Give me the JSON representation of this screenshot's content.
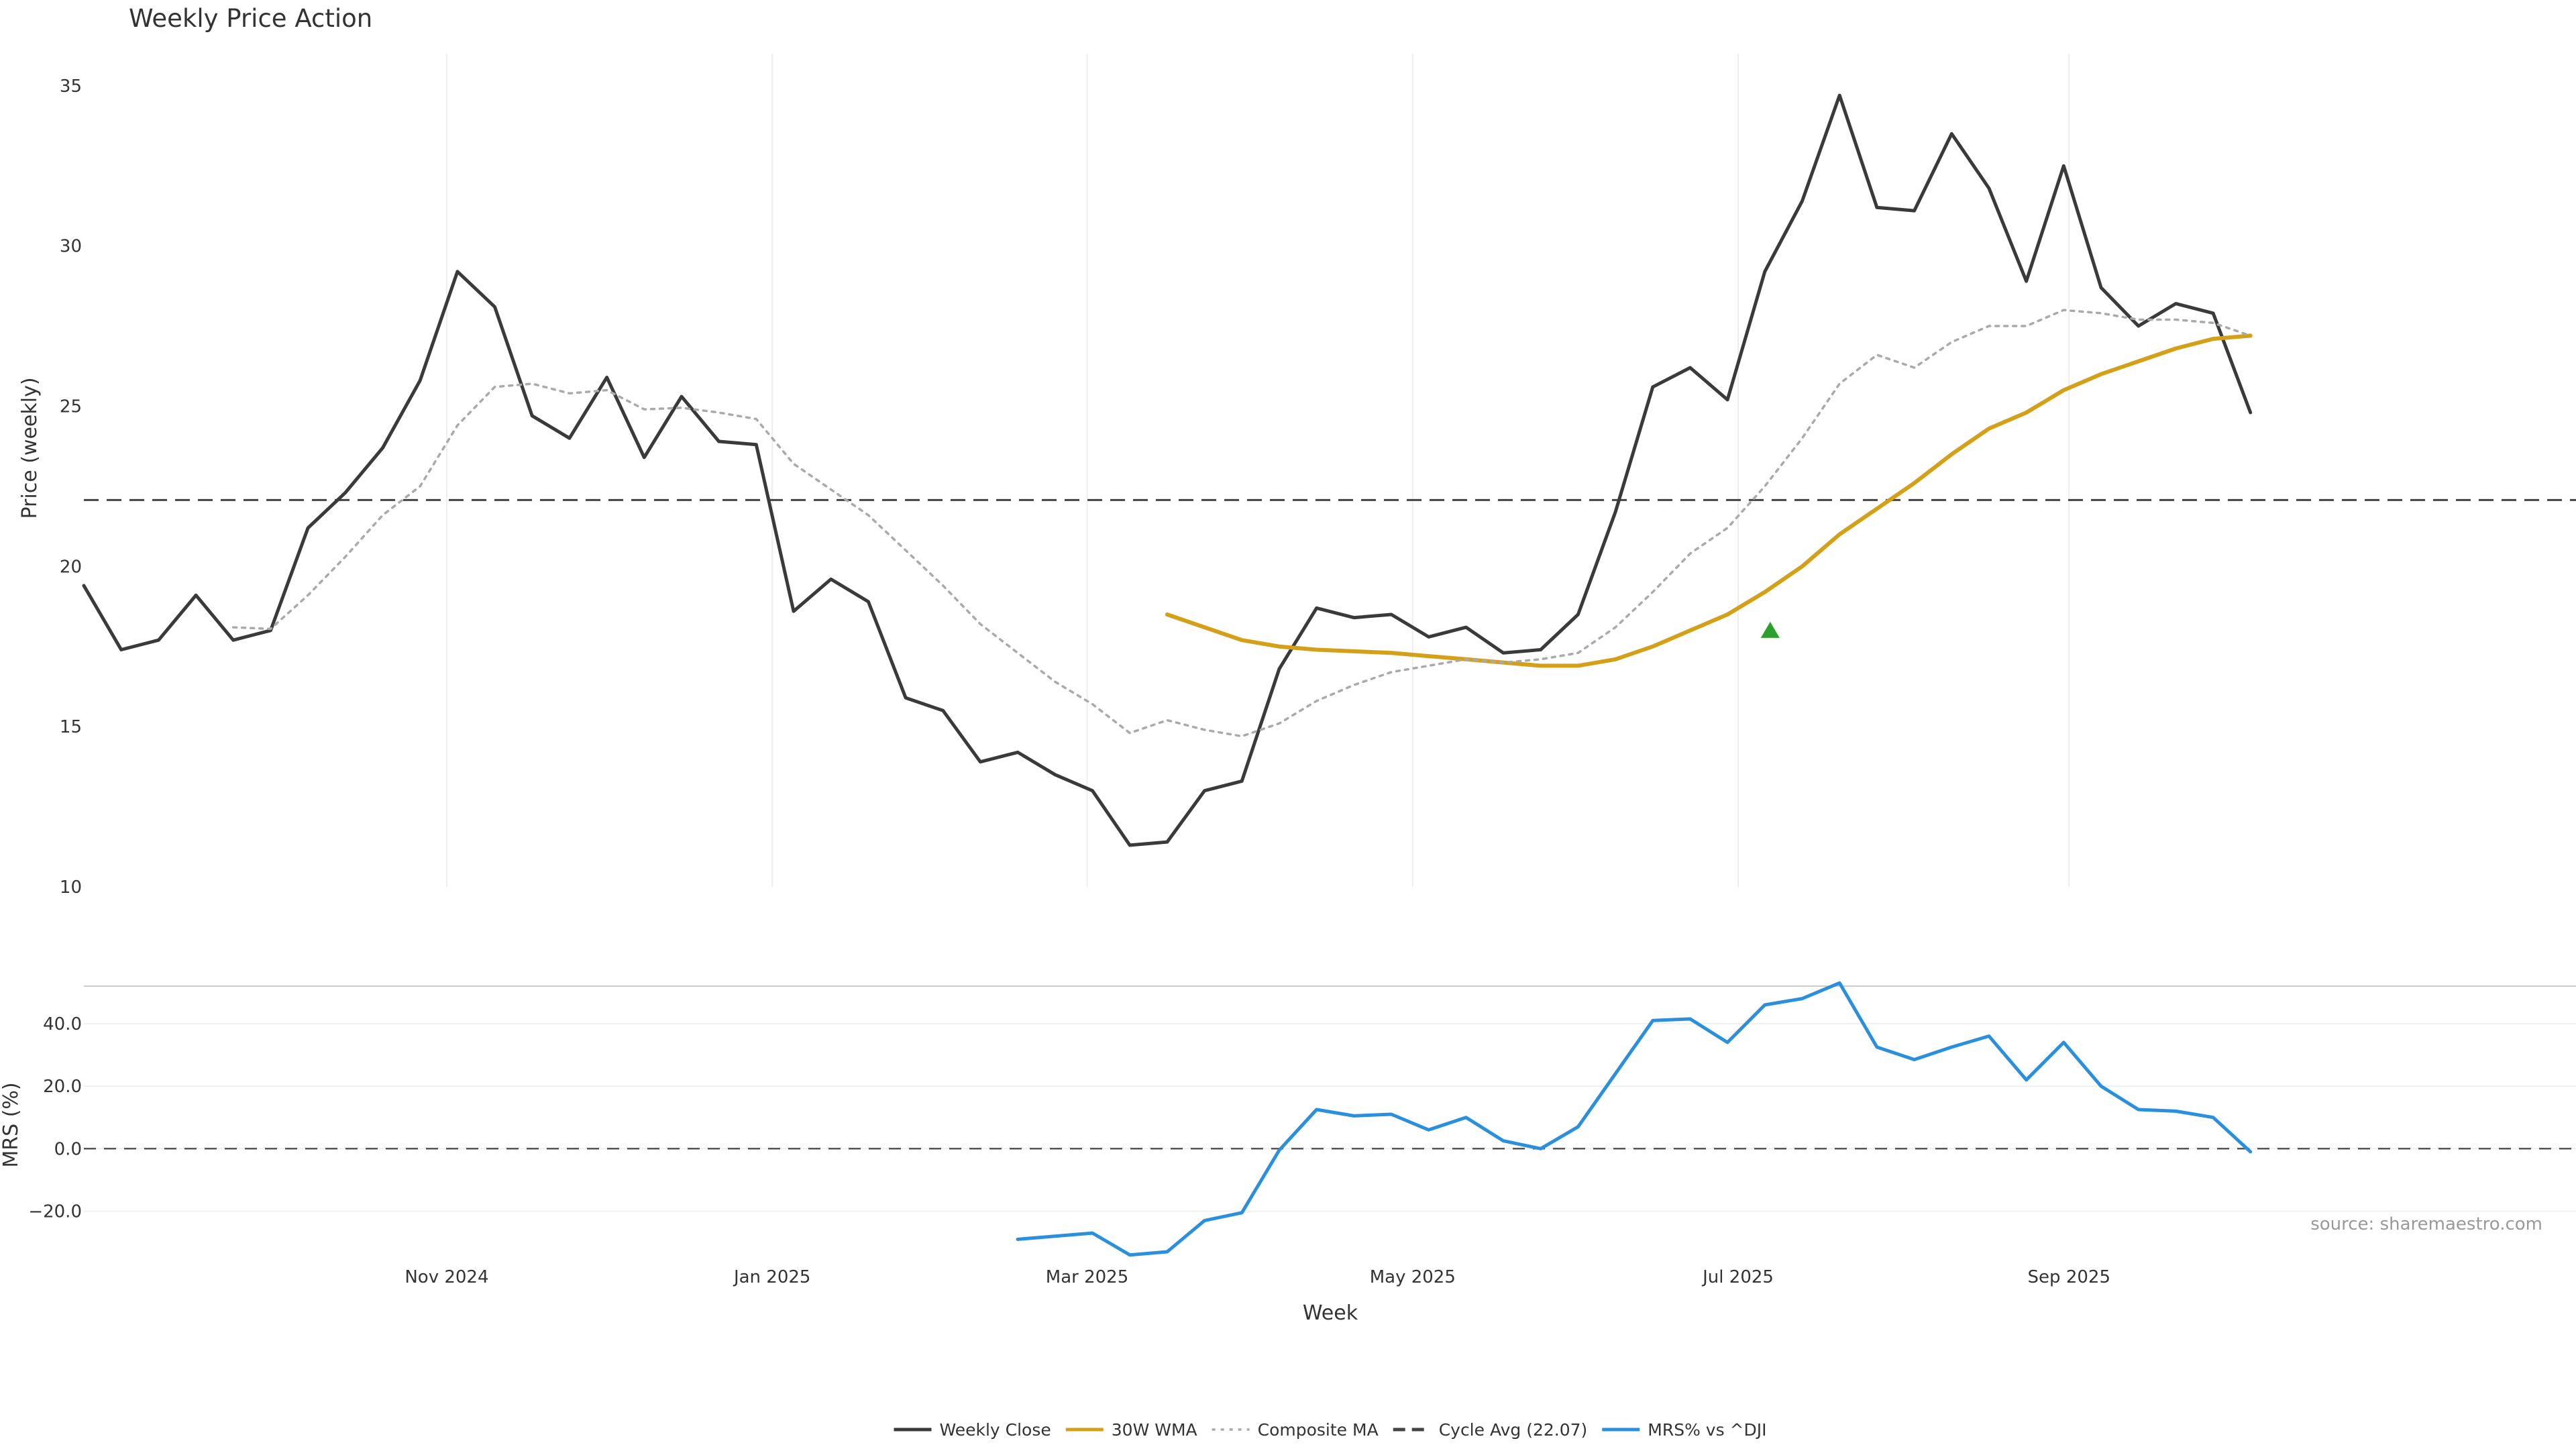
{
  "chart_data": {
    "type": "line",
    "title": "Weekly Price Action",
    "xlabel": "Week",
    "source": "source: sharemaestro.com",
    "x_ticks": [
      {
        "date": "2024-11-01",
        "label": "Nov 2024"
      },
      {
        "date": "2025-01-01",
        "label": "Jan 2025"
      },
      {
        "date": "2025-03-01",
        "label": "Mar 2025"
      },
      {
        "date": "2025-05-01",
        "label": "May 2025"
      },
      {
        "date": "2025-07-01",
        "label": "Jul 2025"
      },
      {
        "date": "2025-09-01",
        "label": "Sep 2025"
      }
    ],
    "x_range": [
      "2024-08-25",
      "2025-12-05"
    ],
    "dates": [
      "2024-08-25",
      "2024-09-01",
      "2024-09-08",
      "2024-09-15",
      "2024-09-22",
      "2024-09-29",
      "2024-10-06",
      "2024-10-13",
      "2024-10-20",
      "2024-10-27",
      "2024-11-03",
      "2024-11-10",
      "2024-11-17",
      "2024-11-24",
      "2024-12-01",
      "2024-12-08",
      "2024-12-15",
      "2024-12-22",
      "2024-12-29",
      "2025-01-05",
      "2025-01-12",
      "2025-01-19",
      "2025-01-26",
      "2025-02-02",
      "2025-02-09",
      "2025-02-16",
      "2025-02-23",
      "2025-03-02",
      "2025-03-09",
      "2025-03-16",
      "2025-03-23",
      "2025-03-30",
      "2025-04-06",
      "2025-04-13",
      "2025-04-20",
      "2025-04-27",
      "2025-05-04",
      "2025-05-11",
      "2025-05-18",
      "2025-05-25",
      "2025-06-01",
      "2025-06-08",
      "2025-06-15",
      "2025-06-22",
      "2025-06-29",
      "2025-07-06",
      "2025-07-13",
      "2025-07-20",
      "2025-07-27",
      "2025-08-03",
      "2025-08-10",
      "2025-08-17",
      "2025-08-24",
      "2025-08-31",
      "2025-09-07",
      "2025-09-14",
      "2025-09-21",
      "2025-09-28",
      "2025-10-05",
      "2025-10-12",
      "2025-10-19",
      "2025-10-26"
    ],
    "price_panel": {
      "ylabel": "Price (weekly)",
      "ylim": [
        10,
        36
      ],
      "yticks": [
        10,
        15,
        20,
        25,
        30,
        35
      ],
      "cycle_avg": 22.07,
      "series": [
        {
          "name": "Weekly Close",
          "color": "#3a3a3a",
          "style": "solid",
          "values": [
            19.4,
            17.4,
            17.7,
            19.1,
            17.7,
            18.0,
            21.2,
            22.3,
            23.7,
            25.8,
            29.2,
            28.1,
            24.7,
            24.0,
            25.9,
            23.4,
            25.3,
            23.9,
            23.8,
            18.6,
            19.6,
            18.9,
            15.9,
            15.5,
            13.9,
            14.2,
            13.5,
            13.0,
            11.3,
            11.4,
            13.0,
            13.3,
            16.8,
            18.7,
            18.4,
            18.5,
            17.8,
            18.1,
            17.3,
            17.4,
            18.5,
            21.7,
            25.6,
            26.2,
            25.2,
            29.2,
            31.4,
            34.7,
            31.2,
            31.1,
            33.5,
            31.8,
            28.9,
            32.5,
            28.7,
            27.5,
            28.2,
            27.9,
            24.8,
            null,
            null,
            null
          ]
        },
        {
          "name": "30W WMA",
          "color": "#d4a017",
          "style": "solid",
          "values": [
            null,
            null,
            null,
            null,
            null,
            null,
            null,
            null,
            null,
            null,
            null,
            null,
            null,
            null,
            null,
            null,
            null,
            null,
            null,
            null,
            null,
            null,
            null,
            null,
            null,
            null,
            null,
            null,
            null,
            18.5,
            18.1,
            17.7,
            17.5,
            17.4,
            17.35,
            17.3,
            17.2,
            17.1,
            17.0,
            16.9,
            16.9,
            17.1,
            17.5,
            18.0,
            18.5,
            19.2,
            20.0,
            21.0,
            21.8,
            22.6,
            23.5,
            24.3,
            24.8,
            25.5,
            26.0,
            26.4,
            26.8,
            27.1,
            27.2,
            null,
            null,
            null
          ]
        },
        {
          "name": "Composite MA",
          "color": "#aaaaaa",
          "style": "dotted",
          "values": [
            null,
            null,
            null,
            null,
            18.1,
            18.05,
            19.1,
            20.3,
            21.6,
            22.5,
            24.4,
            25.6,
            25.7,
            25.4,
            25.5,
            24.9,
            24.95,
            24.8,
            24.6,
            23.2,
            22.4,
            21.6,
            20.5,
            19.4,
            18.2,
            17.3,
            16.4,
            15.7,
            14.8,
            15.2,
            14.9,
            14.7,
            15.1,
            15.8,
            16.3,
            16.7,
            16.9,
            17.1,
            17.0,
            17.1,
            17.3,
            18.1,
            19.2,
            20.4,
            21.2,
            22.5,
            24.0,
            25.7,
            26.6,
            26.2,
            27.0,
            27.5,
            27.5,
            28.0,
            27.9,
            27.7,
            27.7,
            27.6,
            27.2,
            null,
            null,
            null
          ]
        }
      ],
      "signal": {
        "date": "2025-07-07",
        "value": 18.0,
        "color": "#2ca02c",
        "shape": "triangle-up"
      }
    },
    "mrs_panel": {
      "ylabel": "MRS (%)",
      "ylim": [
        -36,
        52
      ],
      "yticks": [
        -20,
        0,
        20,
        40
      ],
      "ytick_labels": [
        "−20.0",
        "0.0",
        "20.0",
        "40.0"
      ],
      "baseline": 0,
      "series": [
        {
          "name": "MRS% vs ^DJI",
          "color": "#2a8fdc",
          "style": "solid",
          "values": [
            null,
            null,
            null,
            null,
            null,
            null,
            null,
            null,
            null,
            null,
            null,
            null,
            null,
            null,
            null,
            null,
            null,
            null,
            null,
            null,
            null,
            null,
            null,
            null,
            null,
            -29.0,
            -28.0,
            -27.0,
            -34.0,
            -33.0,
            -23.0,
            -20.5,
            -0.5,
            12.5,
            10.5,
            11.0,
            6.0,
            10.0,
            2.5,
            0.0,
            7.0,
            24.0,
            41.0,
            41.5,
            34.0,
            46.0,
            48.0,
            53.0,
            32.5,
            28.5,
            32.5,
            36.0,
            22.0,
            34.0,
            20.0,
            12.5,
            12.0,
            10.0,
            -1.0,
            null,
            null,
            null
          ]
        }
      ]
    },
    "legend": {
      "position": "bottom-center",
      "entries": [
        {
          "label": "Weekly Close",
          "color": "#3a3a3a",
          "style": "solid"
        },
        {
          "label": "30W WMA",
          "color": "#d4a017",
          "style": "solid"
        },
        {
          "label": "Composite MA",
          "color": "#aaaaaa",
          "style": "dotted"
        },
        {
          "label": "Cycle Avg (22.07)",
          "color": "#444444",
          "style": "dashed"
        },
        {
          "label": "MRS% vs ^DJI",
          "color": "#2a8fdc",
          "style": "solid"
        }
      ]
    },
    "grid": true
  }
}
